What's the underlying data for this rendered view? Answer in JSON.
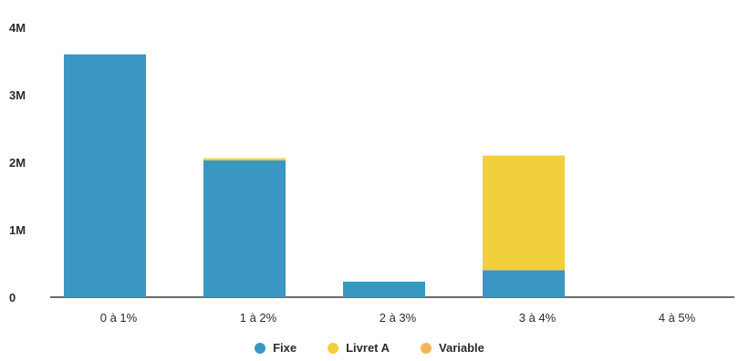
{
  "chart_data": {
    "type": "bar",
    "stacked": true,
    "categories": [
      "0 à 1%",
      "1 à 2%",
      "2 à 3%",
      "3 à 4%",
      "4 à 5%"
    ],
    "series": [
      {
        "name": "Fixe",
        "color": "#3a97c4",
        "values": [
          3600000,
          2030000,
          230000,
          400000,
          0
        ]
      },
      {
        "name": "Livret A",
        "color": "#f2cf3c",
        "values": [
          0,
          30000,
          0,
          1700000,
          0
        ]
      },
      {
        "name": "Variable",
        "color": "#f4b55a",
        "values": [
          0,
          0,
          0,
          0,
          0
        ]
      }
    ],
    "yticks": [
      "0",
      "1M",
      "2M",
      "3M",
      "4M"
    ],
    "ytick_values": [
      0,
      1000000,
      2000000,
      3000000,
      4000000
    ],
    "ylim": [
      0,
      4000000
    ],
    "grid": false,
    "legend_position": "bottom"
  }
}
